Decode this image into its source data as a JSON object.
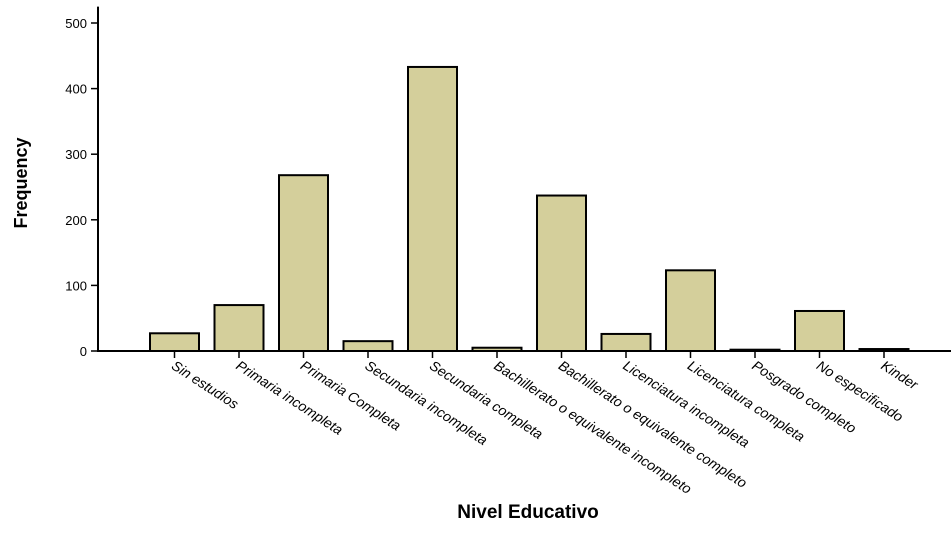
{
  "chart_data": {
    "type": "bar",
    "title": "",
    "xlabel": "Nivel Educativo",
    "ylabel": "Frequency",
    "ylim": [
      0,
      525
    ],
    "yticks": [
      0,
      100,
      200,
      300,
      400,
      500
    ],
    "grid": false,
    "bar_color": "#d4cf9b",
    "bar_edge_color": "#000000",
    "categories": [
      "Sin estudios",
      "Primaria incompleta",
      "Primaria Completa",
      "Secundaria incompleta",
      "Secundaria completa",
      "Bachillerato o equivalente incompleto",
      "Bachillerato o equivalente completo",
      "Licenciatura incompleta",
      "Licenciatura completa",
      "Posgrado completo",
      "No especificado",
      "Kinder"
    ],
    "values": [
      27,
      70,
      268,
      15,
      433,
      5,
      237,
      26,
      123,
      2,
      61,
      3
    ]
  }
}
